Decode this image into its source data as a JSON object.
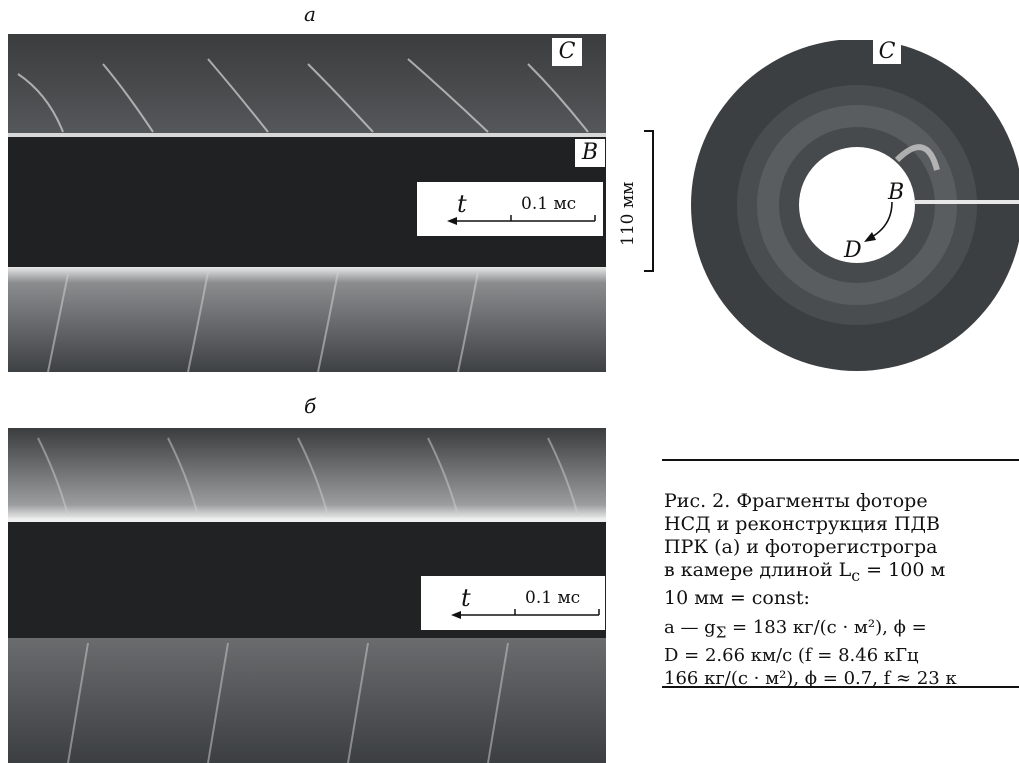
{
  "panel_a": {
    "letter": "a",
    "label_C": "C",
    "label_B": "B",
    "time_symbol": "t",
    "time_scale": "0.1 мс"
  },
  "panel_b": {
    "letter": "б",
    "time_symbol": "t",
    "time_scale": "0.1 мс"
  },
  "scale_bar": "110 мм",
  "ring": {
    "label_C": "C",
    "label_B": "B",
    "label_D": "D"
  },
  "caption": {
    "line1": "Рис.  2. Фрагменты  фоторе",
    "line2": "НСД и реконструкция ПДВ",
    "line3": "ПРК (a) и фоторегистрогра",
    "line4": "в камере длиной L",
    "line4_sub": "c",
    "line4_tail": " = 100  м",
    "line5": "10 мм = const:",
    "line6": "a — g",
    "line6_sub": "Σ",
    "line6_tail": " = 183 кг/(с · м²), ϕ =",
    "line7": "D = 2.66 км/с (f = 8.46 кГц",
    "line8": "166 кг/(с · м²), ϕ = 0.7, f ≈ 23 к"
  }
}
